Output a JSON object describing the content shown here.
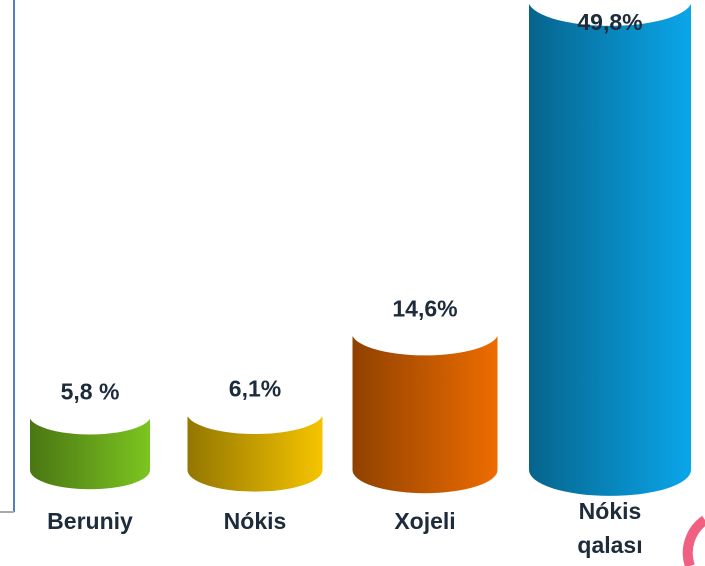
{
  "chart_data": {
    "type": "bar",
    "categories": [
      "Beruniy",
      "Nókis",
      "Xojeli",
      "Nókis qalası"
    ],
    "values": [
      5.8,
      6.1,
      14.6,
      49.8
    ],
    "value_labels": [
      "5,8 %",
      "6,1%",
      "14,6%",
      "49,8%"
    ],
    "colors": [
      "#7cc520",
      "#f5c400",
      "#ee6c00",
      "#0aa6ea"
    ]
  }
}
